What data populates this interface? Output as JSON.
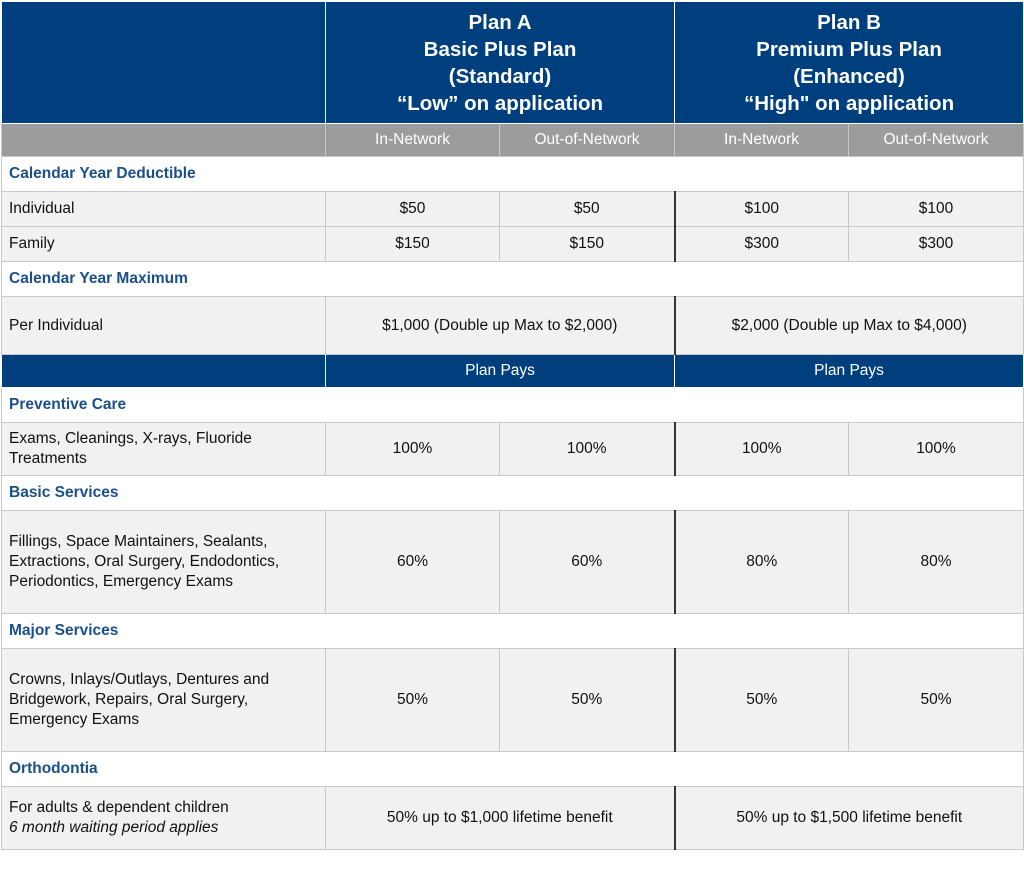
{
  "plans": {
    "a": {
      "lines": [
        "Plan A",
        "Basic Plus Plan",
        "(Standard)",
        "“Low” on application"
      ]
    },
    "b": {
      "lines": [
        "Plan B",
        "Premium Plus Plan",
        "(Enhanced)",
        "“High\" on application"
      ]
    }
  },
  "network": {
    "in": "In-Network",
    "out": "Out-of-Network"
  },
  "deductible": {
    "title": "Calendar Year Deductible",
    "rows": [
      {
        "label": "Individual",
        "a_in": "$50",
        "a_out": "$50",
        "b_in": "$100",
        "b_out": "$100"
      },
      {
        "label": "Family",
        "a_in": "$150",
        "a_out": "$150",
        "b_in": "$300",
        "b_out": "$300"
      }
    ]
  },
  "maximum": {
    "title": "Calendar Year Maximum",
    "label": "Per Individual",
    "a": "$1,000 (Double up Max to $2,000)",
    "b": "$2,000 (Double up Max to $4,000)"
  },
  "plan_pays": "Plan Pays",
  "preventive": {
    "title": "Preventive Care",
    "label": "Exams, Cleanings, X-rays, Fluoride Treatments",
    "a_in": "100%",
    "a_out": "100%",
    "b_in": "100%",
    "b_out": "100%"
  },
  "basic": {
    "title": "Basic Services",
    "label": "Fillings, Space Maintainers, Sealants, Extractions, Oral Surgery, Endodontics, Periodontics, Emergency Exams",
    "a_in": "60%",
    "a_out": "60%",
    "b_in": "80%",
    "b_out": "80%"
  },
  "major": {
    "title": "Major Services",
    "label": "Crowns, Inlays/Outlays, Dentures and Bridgework, Repairs, Oral Surgery, Emergency Exams",
    "a_in": "50%",
    "a_out": "50%",
    "b_in": "50%",
    "b_out": "50%"
  },
  "ortho": {
    "title": "Orthodontia",
    "label": "For adults & dependent children",
    "note": "6 month waiting period applies",
    "a": "50% up to $1,000 lifetime benefit",
    "b": "50% up to $1,500 lifetime benefit"
  }
}
